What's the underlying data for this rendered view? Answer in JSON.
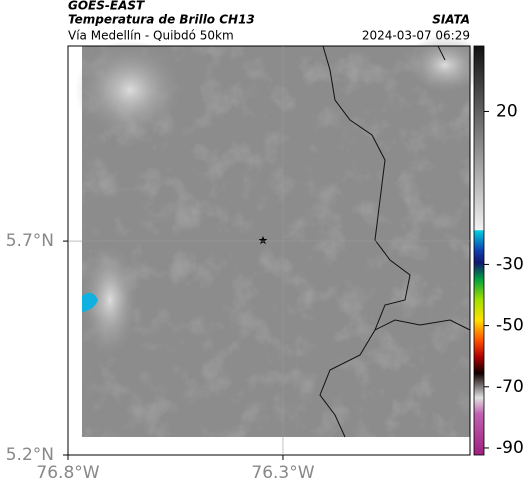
{
  "header": {
    "title": "GOES-EAST",
    "subtitle": "Temperatura de Brillo CH13",
    "region": "Vía Medellín - Quibdó 50km",
    "source": "SIATA",
    "timestamp": "2024-03-07 06:29"
  },
  "map": {
    "xlim": [
      -76.8,
      -75.865
    ],
    "ylim": [
      5.2,
      6.156
    ],
    "xticks": [
      {
        "value": -76.8,
        "label": "76.8°W"
      },
      {
        "value": -76.3,
        "label": "76.3°W"
      }
    ],
    "yticks": [
      {
        "value": 5.2,
        "label": "5.2°N"
      },
      {
        "value": 5.7,
        "label": "5.7°N"
      }
    ],
    "grid": true
  },
  "colorbar": {
    "lim": [
      -92.3,
      41.4
    ],
    "ticks": [
      20,
      -30,
      -50,
      -70,
      -90
    ]
  }
}
